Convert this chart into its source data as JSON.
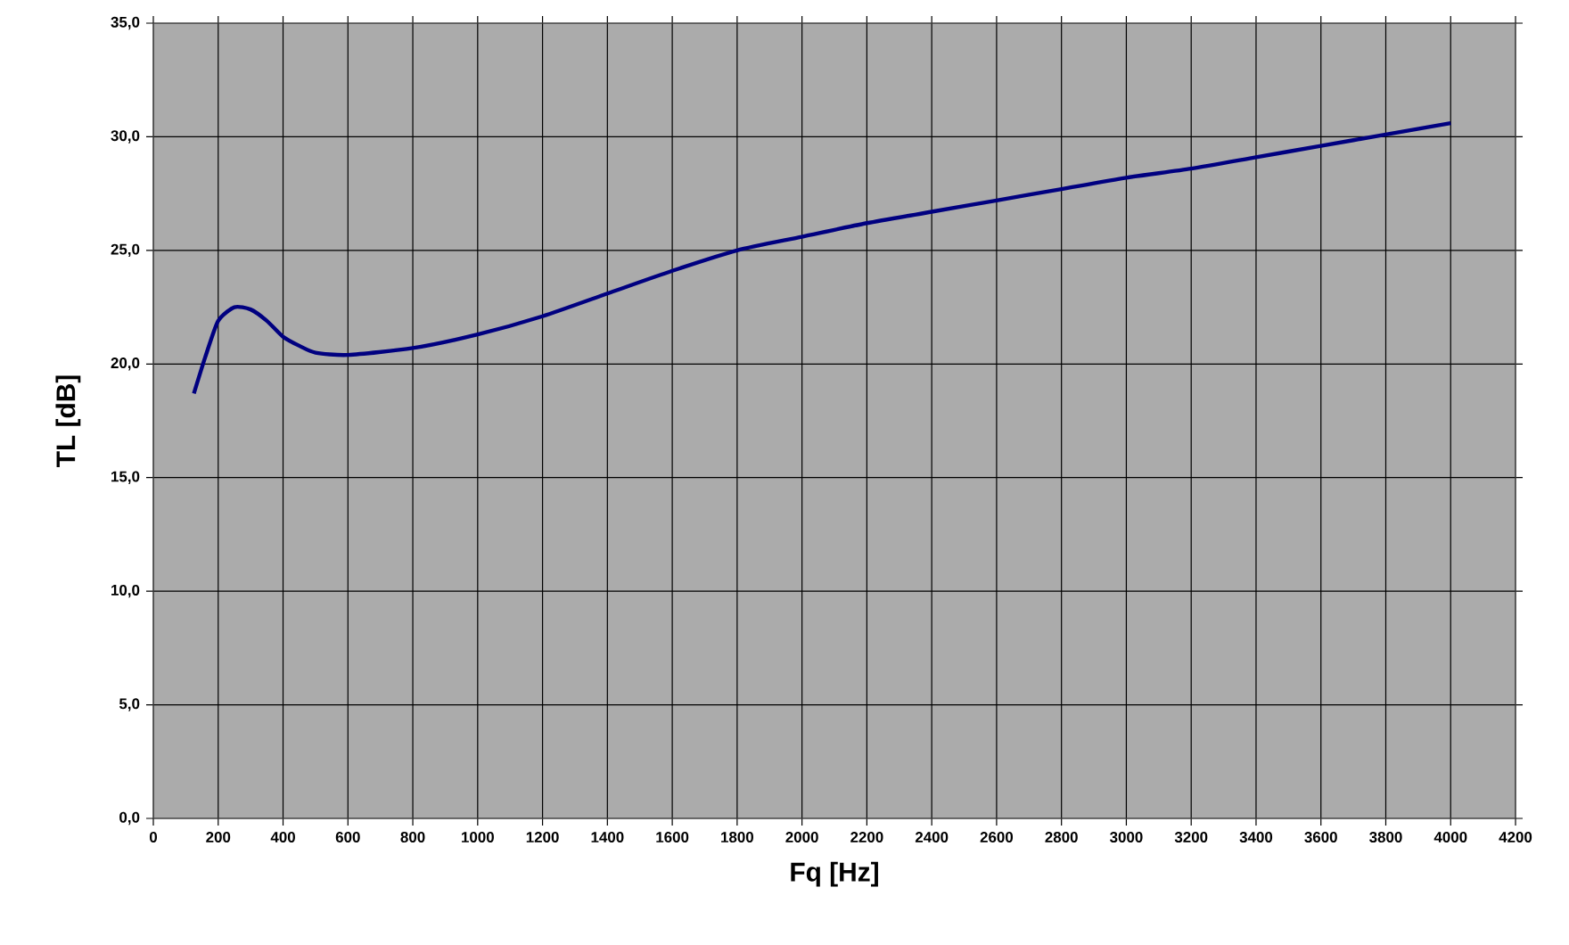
{
  "chart_data": {
    "type": "line",
    "xlabel": "Fq [Hz]",
    "ylabel": "TL [dB]",
    "x": [
      125,
      160,
      200,
      250,
      300,
      350,
      400,
      450,
      500,
      600,
      800,
      1000,
      1200,
      1400,
      1600,
      1800,
      2000,
      2200,
      2400,
      2600,
      2800,
      3000,
      3200,
      3400,
      3600,
      3800,
      4000
    ],
    "series": [
      {
        "color": "#000080",
        "values": [
          18.7,
          20.3,
          21.9,
          22.5,
          22.4,
          21.9,
          21.2,
          20.8,
          20.5,
          20.4,
          20.7,
          21.3,
          22.1,
          23.1,
          24.1,
          25.0,
          25.6,
          26.2,
          26.7,
          27.2,
          27.7,
          28.2,
          28.6,
          29.1,
          29.6,
          30.1,
          30.6
        ]
      }
    ],
    "xlim": [
      0,
      4200
    ],
    "xticks": [
      0,
      200,
      400,
      600,
      800,
      1000,
      1200,
      1400,
      1600,
      1800,
      2000,
      2200,
      2400,
      2600,
      2800,
      3000,
      3200,
      3400,
      3600,
      3800,
      4000,
      4200
    ],
    "ylim": [
      0,
      35
    ],
    "yticks": [
      {
        "value": 0,
        "label": "0,0"
      },
      {
        "value": 5,
        "label": "5,0"
      },
      {
        "value": 10,
        "label": "10,0"
      },
      {
        "value": 15,
        "label": "15,0"
      },
      {
        "value": 20,
        "label": "20,0"
      },
      {
        "value": 25,
        "label": "25,0"
      },
      {
        "value": 30,
        "label": "30,0"
      },
      {
        "value": 35,
        "label": "35,0"
      }
    ],
    "grid": true,
    "marker": "none",
    "line_style": "solid"
  }
}
